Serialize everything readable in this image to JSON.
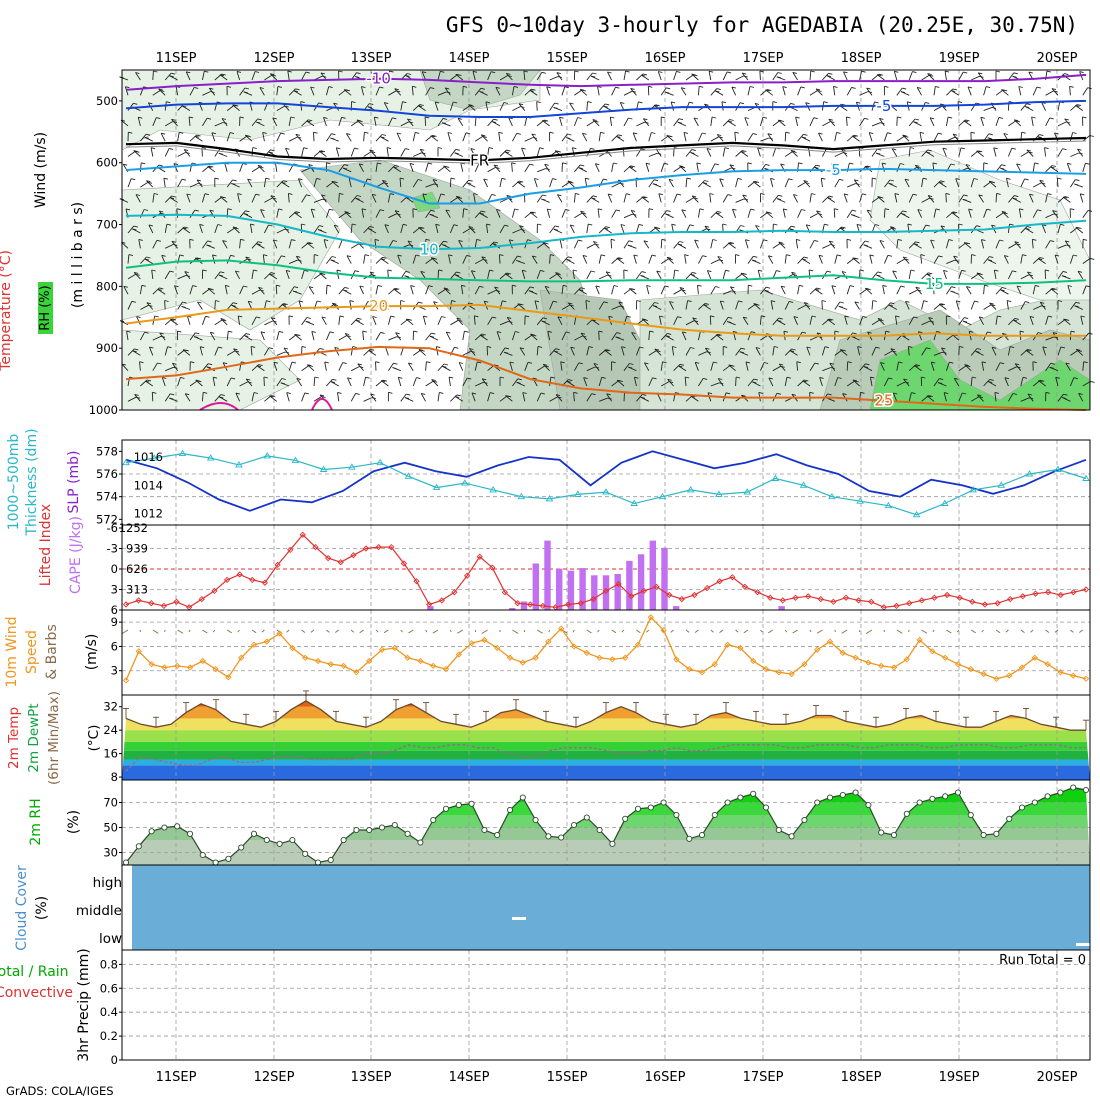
{
  "title": "GFS 0~10day 3-hourly for AGEDABIA (20.25E, 30.75N)",
  "credit": "GrADS: COLA/IGES",
  "days": [
    "11SEP",
    "12SEP",
    "13SEP",
    "14SEP",
    "15SEP",
    "16SEP",
    "17SEP",
    "18SEP",
    "19SEP",
    "20SEP"
  ],
  "colors": {
    "purple": "#8a1fc9",
    "blue": "#1444d8",
    "freezing": "#000000",
    "cyan_blue": "#1a9ee6",
    "cyan": "#16b8c8",
    "teal": "#10c080",
    "orange": "#e89a18",
    "dark_orange": "#e06818",
    "magenta": "#e0189a",
    "slp": "#1433c8",
    "thickness": "#2ab8c8",
    "li": "#e03030",
    "cape": "#c070f0",
    "wind": "#f0961e",
    "rh_green": "#00cc00",
    "cloud": "#6aaed8"
  },
  "panel_labels": {
    "upper": [
      {
        "text": "Wind (m/s)",
        "color": "#000000"
      },
      {
        "text": "Temperature (°C)",
        "color": "#e03030"
      },
      {
        "text": "RH (%)",
        "color": "#000000"
      },
      {
        "text": "(m i l l i b a r s)",
        "color": "#000000"
      }
    ],
    "pressure": [
      {
        "text": "1000~500mb",
        "color": "#2ab8c8"
      },
      {
        "text": "Thickness (dm)",
        "color": "#2ab8c8"
      },
      {
        "text": "SLP (mb)",
        "color": "#8a1fc9"
      }
    ],
    "stability": [
      {
        "text": "Lifted Index",
        "color": "#e03030"
      },
      {
        "text": "CAPE (J/kg)",
        "color": "#c070f0"
      }
    ],
    "wind": [
      {
        "text": "10m Wind",
        "color": "#f0961e"
      },
      {
        "text": "Speed",
        "color": "#f0961e"
      },
      {
        "text": "& Barbs",
        "color": "#8a6a4a"
      },
      {
        "text": "(m/s)",
        "color": "#000000"
      }
    ],
    "temp": [
      {
        "text": "2m Temp",
        "color": "#e03030"
      },
      {
        "text": "2m DewPt",
        "color": "#10a040"
      },
      {
        "text": "(6hr Min/Max)",
        "color": "#8a6a4a"
      },
      {
        "text": "(°C)",
        "color": "#000000"
      }
    ],
    "rh": [
      {
        "text": "2m RH",
        "color": "#00aa00"
      },
      {
        "text": "(%)",
        "color": "#000000"
      }
    ],
    "cloud": [
      {
        "text": "Cloud Cover",
        "color": "#4a8ed0"
      },
      {
        "text": "(%)",
        "color": "#000000"
      }
    ],
    "precip": [
      {
        "text": "Total / Rain",
        "color": "#00aa00"
      },
      {
        "text": "Convective",
        "color": "#e03030"
      },
      {
        "text": "3hr Precip (mm)",
        "color": "#000000"
      }
    ]
  },
  "cloud_levels": [
    "high",
    "middle",
    "low"
  ],
  "run_total": "Run Total = 0",
  "chart_data": [
    {
      "type": "heatmap",
      "name": "upper-air",
      "ylabel": "(m i l l i b a r s)",
      "yticks": [
        "500",
        "600",
        "700",
        "800",
        "900",
        "1000"
      ],
      "ylim": [
        1000,
        450
      ],
      "contours": [
        {
          "label": "-10",
          "color": "purple",
          "mb": [
            482,
            476,
            472,
            468,
            466,
            464,
            466,
            470,
            474,
            476,
            474,
            472,
            470,
            470,
            468,
            468,
            468,
            468,
            464,
            458
          ]
        },
        {
          "label": "-5",
          "color": "blue",
          "mb": [
            512,
            506,
            504,
            504,
            510,
            516,
            524,
            526,
            526,
            520,
            514,
            510,
            510,
            510,
            508,
            508,
            508,
            506,
            502,
            500
          ]
        },
        {
          "label": "FR",
          "color": "freezing",
          "mb": [
            570,
            568,
            578,
            590,
            594,
            592,
            594,
            596,
            592,
            584,
            576,
            572,
            568,
            572,
            578,
            572,
            566,
            564,
            562,
            560
          ]
        },
        {
          "label": "-5",
          "color": "cyan_blue",
          "mb": [
            612,
            606,
            600,
            600,
            612,
            640,
            666,
            666,
            650,
            640,
            628,
            620,
            614,
            612,
            612,
            610,
            612,
            614,
            616,
            618
          ]
        },
        {
          "label": "10",
          "color": "cyan",
          "mb": [
            686,
            684,
            686,
            700,
            720,
            736,
            740,
            738,
            730,
            720,
            714,
            712,
            712,
            710,
            712,
            712,
            710,
            708,
            700,
            694
          ]
        },
        {
          "label": "15",
          "color": "teal",
          "mb": [
            770,
            760,
            758,
            766,
            778,
            786,
            788,
            790,
            792,
            792,
            790,
            790,
            790,
            786,
            782,
            790,
            796,
            796,
            794,
            790
          ]
        },
        {
          "label": "20",
          "color": "orange",
          "mb": [
            860,
            850,
            838,
            836,
            834,
            832,
            832,
            830,
            840,
            850,
            860,
            870,
            876,
            880,
            880,
            880,
            876,
            880,
            880,
            880
          ]
        },
        {
          "label": "25",
          "color": "dark_orange",
          "mb": [
            950,
            944,
            930,
            915,
            905,
            898,
            900,
            920,
            950,
            965,
            972,
            975,
            980,
            980,
            980,
            985,
            990,
            995,
            998,
            1000
          ]
        }
      ]
    },
    {
      "type": "line",
      "name": "slp-thickness",
      "yticks_left": [
        "578",
        "576",
        "574",
        "572"
      ],
      "yticks_right": [
        "1016",
        "1014",
        "1012"
      ],
      "series": [
        {
          "name": "SLP (mb)",
          "axis": "right",
          "color": "slp",
          "values": [
            1015.8,
            1015.2,
            1014.2,
            1013.0,
            1012.2,
            1013.0,
            1012.8,
            1013.6,
            1015.0,
            1015.6,
            1015.0,
            1014.6,
            1015.4,
            1016.0,
            1015.8,
            1014.0,
            1015.6,
            1016.4,
            1015.8,
            1015.2,
            1015.6,
            1016.2,
            1015.4,
            1014.8,
            1013.6,
            1013.2,
            1014.4,
            1014.0,
            1013.4,
            1014.0,
            1015.0,
            1015.8
          ]
        },
        {
          "name": "1000~500mb Thickness (dm)",
          "axis": "left",
          "color": "thickness",
          "values": [
            577.0,
            577.4,
            577.8,
            577.4,
            576.8,
            577.6,
            577.2,
            576.4,
            576.6,
            577.0,
            575.8,
            574.8,
            575.2,
            574.6,
            574.0,
            573.8,
            574.2,
            574.4,
            573.4,
            574.0,
            574.6,
            574.2,
            574.4,
            575.6,
            575.0,
            574.0,
            573.6,
            573.2,
            572.4,
            573.4,
            574.6,
            575.0,
            576.0,
            576.4,
            575.6
          ]
        }
      ]
    },
    {
      "type": "bar",
      "name": "stability",
      "yticks_left": [
        "-6",
        "-3",
        "0",
        "3",
        "6"
      ],
      "yticks_right": [
        "1252",
        "939",
        "626",
        "313"
      ],
      "lifted_index": [
        5.2,
        4.6,
        5.0,
        5.4,
        4.8,
        5.6,
        4.4,
        3.2,
        1.6,
        0.8,
        1.6,
        2.0,
        -0.6,
        -2.8,
        -5.0,
        -3.2,
        -1.6,
        -1.0,
        -2.0,
        -3.0,
        -3.2,
        -3.2,
        -0.8,
        1.8,
        5.2,
        4.6,
        3.4,
        1.0,
        -1.8,
        -0.2,
        3.4,
        5.0,
        5.2,
        5.4,
        5.6,
        5.2,
        5.0,
        4.4,
        3.2,
        2.2,
        4.0,
        3.2,
        2.6,
        3.8,
        4.4,
        3.8,
        2.8,
        1.8,
        1.2,
        2.6,
        3.4,
        4.2,
        4.6,
        4.2,
        4.0,
        4.4,
        4.8,
        4.2,
        4.6,
        4.8,
        5.6,
        5.4,
        5.0,
        4.6,
        4.2,
        3.8,
        4.2,
        4.8,
        5.2,
        5.0,
        4.4,
        4.0,
        3.6,
        3.4,
        3.8,
        3.4,
        3.0
      ],
      "cape": [
        0,
        0,
        0,
        0,
        0,
        0,
        0,
        0,
        0,
        0,
        0,
        0,
        0,
        0,
        0,
        0,
        0,
        0,
        0,
        0,
        0,
        0,
        0,
        0,
        0,
        0,
        60,
        0,
        0,
        0,
        0,
        0,
        0,
        30,
        130,
        710,
        1060,
        630,
        600,
        640,
        530,
        530,
        550,
        750,
        850,
        1060,
        950,
        60,
        0,
        0,
        0,
        0,
        0,
        0,
        0,
        0,
        60,
        0,
        0,
        0,
        0,
        0,
        0,
        0,
        0,
        0,
        0,
        0,
        0,
        0,
        0,
        0,
        0,
        0,
        0,
        0,
        0,
        0,
        0,
        0,
        0,
        0,
        0
      ]
    },
    {
      "type": "line",
      "name": "10m-wind",
      "yticks": [
        "9",
        "6",
        "3"
      ],
      "values": [
        1.8,
        5.4,
        3.8,
        3.4,
        3.6,
        3.4,
        4.2,
        3.2,
        2.2,
        4.6,
        6.2,
        6.6,
        7.6,
        5.8,
        4.6,
        4.2,
        3.8,
        3.6,
        2.8,
        4.2,
        5.6,
        5.8,
        4.6,
        4.2,
        3.6,
        3.2,
        5.0,
        6.4,
        6.8,
        5.8,
        4.6,
        4.0,
        4.6,
        6.6,
        8.2,
        6.0,
        5.2,
        4.6,
        4.4,
        4.6,
        6.2,
        9.6,
        8.0,
        4.4,
        3.2,
        2.8,
        3.8,
        6.2,
        5.8,
        4.2,
        3.2,
        2.8,
        2.6,
        3.8,
        5.6,
        6.6,
        5.2,
        4.6,
        4.0,
        3.6,
        3.4,
        4.4,
        6.8,
        5.4,
        4.6,
        3.8,
        3.2,
        2.6,
        2.0,
        2.4,
        3.4,
        4.6,
        3.8,
        2.8,
        2.4,
        2.0
      ]
    },
    {
      "type": "area",
      "name": "2m-temp",
      "yticks": [
        "32",
        "24",
        "16",
        "8"
      ],
      "temp": [
        28,
        26,
        25,
        26,
        30,
        33,
        31,
        27,
        26,
        25,
        27,
        31,
        34,
        31,
        27,
        26,
        25,
        27,
        31,
        33,
        30,
        27,
        26,
        25,
        27,
        30,
        31,
        29,
        27,
        26,
        25,
        27,
        30,
        32,
        30,
        27,
        26,
        25,
        26,
        29,
        30,
        28,
        27,
        26,
        26,
        27,
        29,
        29,
        27,
        26,
        25,
        26,
        28,
        29,
        27,
        26,
        25,
        25,
        27,
        29,
        28,
        26,
        25,
        24,
        24
      ],
      "dewpoint": [
        10,
        15,
        14,
        13,
        12,
        12,
        14,
        15,
        13,
        13,
        14,
        15,
        15,
        14,
        14,
        14,
        14,
        16,
        16,
        17,
        19,
        18,
        18,
        19,
        19,
        18,
        18,
        16,
        15,
        15,
        17,
        18,
        18,
        18,
        17,
        16,
        16,
        17,
        17,
        18,
        17,
        17,
        18,
        19,
        19,
        19,
        19,
        18,
        18,
        19,
        19,
        19,
        18,
        18,
        19,
        19,
        19,
        18,
        18,
        19,
        19,
        19,
        18,
        18,
        19,
        19,
        19,
        18,
        18
      ]
    },
    {
      "type": "area",
      "name": "2m-rh",
      "yticks": [
        "70",
        "50",
        "30"
      ],
      "values": [
        22,
        35,
        47,
        50,
        51,
        45,
        28,
        22,
        25,
        34,
        45,
        40,
        37,
        40,
        29,
        22,
        24,
        40,
        48,
        48,
        50,
        52,
        45,
        38,
        56,
        65,
        68,
        69,
        48,
        44,
        64,
        74,
        56,
        43,
        42,
        52,
        58,
        48,
        37,
        57,
        65,
        66,
        70,
        60,
        41,
        44,
        60,
        70,
        74,
        77,
        66,
        48,
        43,
        56,
        70,
        74,
        76,
        78,
        68,
        46,
        44,
        61,
        70,
        73,
        75,
        78,
        60,
        44,
        45,
        57,
        66,
        70,
        75,
        78,
        82,
        80
      ]
    },
    {
      "type": "heatmap",
      "name": "cloud-cover",
      "levels": [
        "high",
        "middle",
        "low"
      ],
      "high": 0,
      "middle": 0,
      "low": 0
    },
    {
      "type": "bar",
      "name": "3hr-precip",
      "ylabel": "3hr Precip (mm)",
      "yticks": [
        "0.8",
        "0.6",
        "0.4",
        "0.2",
        "0"
      ],
      "ylim": [
        0,
        0.9
      ],
      "total": [],
      "convective": [],
      "run_total": 0
    }
  ]
}
